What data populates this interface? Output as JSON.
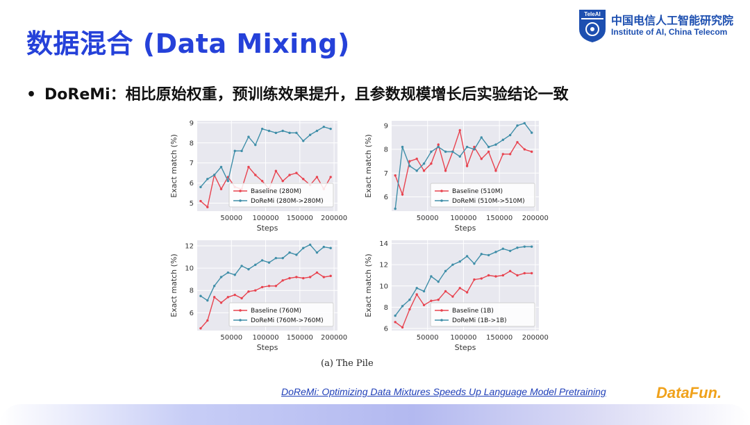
{
  "title": "数据混合 (Data Mixing)",
  "logo": {
    "mark": "TeleAI",
    "cn": "中国电信人工智能研究院",
    "en": "Institute of AI, China Telecom"
  },
  "bullet": {
    "symbol": "•",
    "text": "DoReMi：相比原始权重，预训练效果提升，且参数规模增长后实验结论一致"
  },
  "caption": "(a) The Pile",
  "reference": "DoReMi: Optimizing Data Mixtures Speeds Up Language Model Pretraining",
  "brand": "DataFun.",
  "colors": {
    "title": "#2541d9",
    "baseline": "#e8434f",
    "doremi": "#3f8ea8",
    "plot_bg": "#e8e8ef"
  },
  "chart_data": [
    {
      "type": "line",
      "xlabel": "Steps",
      "ylabel": "Exact match (%)",
      "xlim": [
        0,
        205000
      ],
      "ylim": [
        4.6,
        9.1
      ],
      "xticks": [
        50000,
        100000,
        150000,
        200000
      ],
      "xtick_labels": [
        "50000",
        "100000",
        "150000",
        "200000"
      ],
      "yticks": [
        5,
        6,
        7,
        8,
        9
      ],
      "ytick_labels": [
        "5",
        "6",
        "7",
        "8",
        "9"
      ],
      "legend_position": "lower-right",
      "series": [
        {
          "name": "Baseline (280M)",
          "color": "#e8434f",
          "x": [
            5000,
            15000,
            25000,
            35000,
            45000,
            55000,
            65000,
            75000,
            85000,
            95000,
            105000,
            115000,
            125000,
            135000,
            145000,
            155000,
            165000,
            175000,
            185000,
            195000
          ],
          "y": [
            5.1,
            4.8,
            6.4,
            5.7,
            6.3,
            5.8,
            5.7,
            6.8,
            6.4,
            6.1,
            5.7,
            6.6,
            6.1,
            6.4,
            6.5,
            6.2,
            5.9,
            6.3,
            5.7,
            6.3
          ]
        },
        {
          "name": "DoReMi (280M->280M)",
          "color": "#3f8ea8",
          "x": [
            5000,
            15000,
            25000,
            35000,
            45000,
            55000,
            65000,
            75000,
            85000,
            95000,
            105000,
            115000,
            125000,
            135000,
            145000,
            155000,
            165000,
            175000,
            185000,
            195000
          ],
          "y": [
            5.8,
            6.2,
            6.4,
            6.8,
            6.1,
            7.6,
            7.6,
            8.3,
            7.9,
            8.7,
            8.6,
            8.5,
            8.6,
            8.5,
            8.5,
            8.1,
            8.4,
            8.6,
            8.8,
            8.7
          ]
        }
      ]
    },
    {
      "type": "line",
      "xlabel": "Steps",
      "ylabel": "Exact match (%)",
      "xlim": [
        0,
        205000
      ],
      "ylim": [
        5.4,
        9.2
      ],
      "xticks": [
        50000,
        100000,
        150000,
        200000
      ],
      "xtick_labels": [
        "50000",
        "100000",
        "150000",
        "200000"
      ],
      "yticks": [
        6,
        7,
        8,
        9
      ],
      "ytick_labels": [
        "6",
        "7",
        "8",
        "9"
      ],
      "legend_position": "lower-right",
      "series": [
        {
          "name": "Baseline (510M)",
          "color": "#e8434f",
          "x": [
            5000,
            15000,
            25000,
            35000,
            45000,
            55000,
            65000,
            75000,
            85000,
            95000,
            105000,
            115000,
            125000,
            135000,
            145000,
            155000,
            165000,
            175000,
            185000,
            195000
          ],
          "y": [
            6.9,
            6.1,
            7.5,
            7.6,
            7.1,
            7.4,
            8.2,
            7.1,
            7.9,
            8.8,
            7.3,
            8.1,
            7.6,
            7.9,
            7.1,
            7.8,
            7.8,
            8.3,
            8.0,
            7.9
          ]
        },
        {
          "name": "DoReMi (510M->510M)",
          "color": "#3f8ea8",
          "x": [
            5000,
            15000,
            25000,
            35000,
            45000,
            55000,
            65000,
            75000,
            85000,
            95000,
            105000,
            115000,
            125000,
            135000,
            145000,
            155000,
            165000,
            175000,
            185000,
            195000
          ],
          "y": [
            5.5,
            8.1,
            7.3,
            7.1,
            7.4,
            7.9,
            8.1,
            7.9,
            7.9,
            7.7,
            8.1,
            8.0,
            8.5,
            8.1,
            8.2,
            8.4,
            8.6,
            9.0,
            9.1,
            8.7
          ]
        }
      ]
    },
    {
      "type": "line",
      "xlabel": "Steps",
      "ylabel": "Exact match (%)",
      "xlim": [
        0,
        205000
      ],
      "ylim": [
        4.4,
        12.5
      ],
      "xticks": [
        50000,
        100000,
        150000,
        200000
      ],
      "xtick_labels": [
        "50000",
        "100000",
        "150000",
        "200000"
      ],
      "yticks": [
        6,
        8,
        10,
        12
      ],
      "ytick_labels": [
        "6",
        "8",
        "10",
        "12"
      ],
      "legend_position": "lower-right",
      "series": [
        {
          "name": "Baseline (760M)",
          "color": "#e8434f",
          "x": [
            5000,
            15000,
            25000,
            35000,
            45000,
            55000,
            65000,
            75000,
            85000,
            95000,
            105000,
            115000,
            125000,
            135000,
            145000,
            155000,
            165000,
            175000,
            185000,
            195000
          ],
          "y": [
            4.6,
            5.3,
            7.4,
            6.9,
            7.4,
            7.6,
            7.3,
            7.9,
            8.0,
            8.3,
            8.4,
            8.4,
            8.9,
            9.1,
            9.2,
            9.1,
            9.2,
            9.6,
            9.2,
            9.3
          ]
        },
        {
          "name": "DoReMi (760M->760M)",
          "color": "#3f8ea8",
          "x": [
            5000,
            15000,
            25000,
            35000,
            45000,
            55000,
            65000,
            75000,
            85000,
            95000,
            105000,
            115000,
            125000,
            135000,
            145000,
            155000,
            165000,
            175000,
            185000,
            195000
          ],
          "y": [
            7.5,
            7.1,
            8.4,
            9.2,
            9.6,
            9.4,
            10.2,
            9.9,
            10.3,
            10.7,
            10.5,
            10.9,
            10.9,
            11.4,
            11.2,
            11.8,
            12.1,
            11.4,
            11.9,
            11.8
          ]
        }
      ]
    },
    {
      "type": "line",
      "xlabel": "Steps",
      "ylabel": "Exact match (%)",
      "xlim": [
        0,
        205000
      ],
      "ylim": [
        5.8,
        14.3
      ],
      "xticks": [
        50000,
        100000,
        150000,
        200000
      ],
      "xtick_labels": [
        "50000",
        "100000",
        "150000",
        "200000"
      ],
      "yticks": [
        6,
        8,
        10,
        12,
        14
      ],
      "ytick_labels": [
        "6",
        "8",
        "10",
        "12",
        "14"
      ],
      "legend_position": "lower-right",
      "series": [
        {
          "name": "Baseline (1B)",
          "color": "#e8434f",
          "x": [
            5000,
            15000,
            25000,
            35000,
            45000,
            55000,
            65000,
            75000,
            85000,
            95000,
            105000,
            115000,
            125000,
            135000,
            145000,
            155000,
            165000,
            175000,
            185000,
            195000
          ],
          "y": [
            6.6,
            6.1,
            7.8,
            9.2,
            8.2,
            8.6,
            8.7,
            9.5,
            9.0,
            9.8,
            9.4,
            10.6,
            10.7,
            11.0,
            10.9,
            11.0,
            11.4,
            11.0,
            11.2,
            11.2
          ]
        },
        {
          "name": "DoReMi (1B->1B)",
          "color": "#3f8ea8",
          "x": [
            5000,
            15000,
            25000,
            35000,
            45000,
            55000,
            65000,
            75000,
            85000,
            95000,
            105000,
            115000,
            125000,
            135000,
            145000,
            155000,
            165000,
            175000,
            185000,
            195000
          ],
          "y": [
            7.2,
            8.1,
            8.7,
            9.8,
            9.5,
            10.9,
            10.4,
            11.4,
            12.0,
            12.3,
            12.8,
            12.1,
            13.0,
            12.9,
            13.2,
            13.5,
            13.3,
            13.6,
            13.7,
            13.7
          ]
        }
      ]
    }
  ]
}
